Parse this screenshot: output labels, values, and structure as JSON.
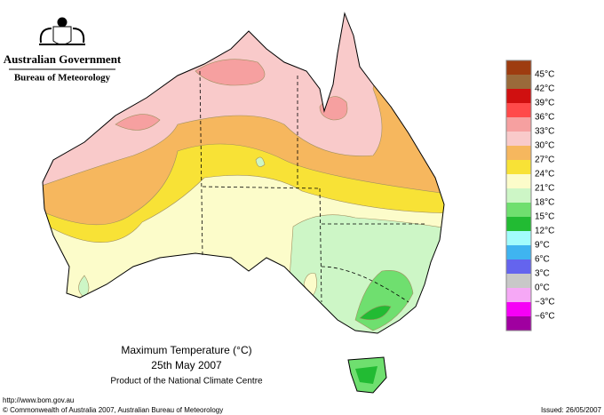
{
  "header": {
    "title": "Australian Government",
    "subtitle": "Bureau of Meteorology"
  },
  "map": {
    "title": "Maximum Temperature (°C)",
    "date": "25th May 2007",
    "product": "Product of the National Climate Centre"
  },
  "legend": {
    "labels": [
      "45°C",
      "42°C",
      "39°C",
      "36°C",
      "33°C",
      "30°C",
      "27°C",
      "24°C",
      "21°C",
      "18°C",
      "15°C",
      "12°C",
      "9°C",
      "6°C",
      "3°C",
      "0°C",
      "−3°C",
      "−6°C"
    ],
    "colors": [
      "#9e3c10",
      "#9a6a3a",
      "#d01010",
      "#ff4a4a",
      "#f6a0a0",
      "#f9caca",
      "#f6b75e",
      "#f8e236",
      "#fcfcca",
      "#cdf6c6",
      "#6fdf6f",
      "#22bb33",
      "#a2fcfc",
      "#3fb4f0",
      "#6464ee",
      "#c8c8c8",
      "#f6a8f6",
      "#f600f6",
      "#a000a0"
    ]
  },
  "footer": {
    "url": "http://www.bom.gov.au",
    "copyright": "© Commonwealth of Australia 2007, Australian Bureau of Meteorology",
    "issued": "Issued: 26/05/2007"
  }
}
